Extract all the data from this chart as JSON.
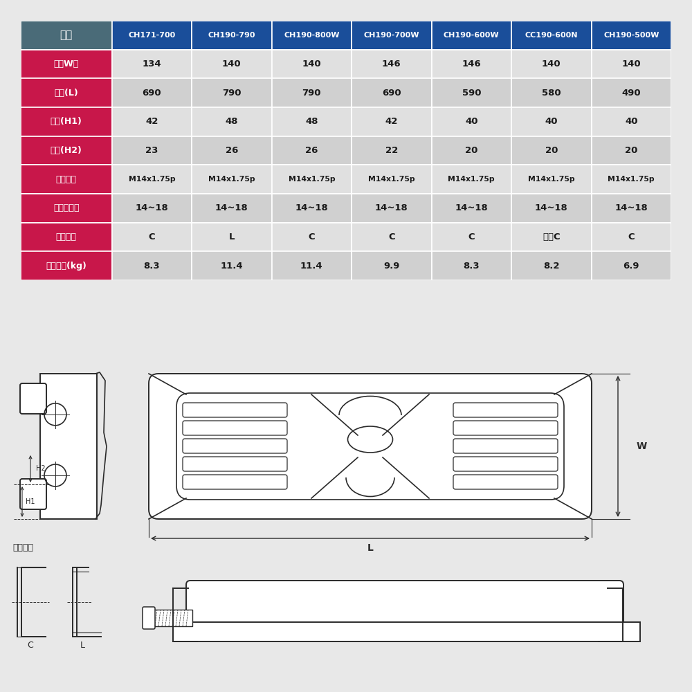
{
  "bg_color": "#e8e8e8",
  "table_header_row_bg": "#4a6b78",
  "table_header_col_bg": "#1a4e9a",
  "table_row_label_bg": "#c8174a",
  "table_data_bg_light": "#e0e0e0",
  "table_data_bg_dark": "#d0d0d0",
  "header_text_color": "#ffffff",
  "data_text_color": "#1a1a1a",
  "columns": [
    "品名",
    "CH171-700",
    "CH190-790",
    "CH190-800W",
    "CH190-700W",
    "CH190-600W",
    "CC190-600N",
    "CH190-500W"
  ],
  "row_labels": [
    "幅（W）",
    "長さ(L)",
    "高さ(H1)",
    "高さ(H2)",
    "取付ネジ",
    "締付トルク",
    "金具形状",
    "製品重量(kg)"
  ],
  "data": [
    [
      "134",
      "140",
      "140",
      "146",
      "146",
      "140",
      "140"
    ],
    [
      "690",
      "790",
      "790",
      "690",
      "590",
      "580",
      "490"
    ],
    [
      "42",
      "48",
      "48",
      "42",
      "40",
      "40",
      "40"
    ],
    [
      "23",
      "26",
      "26",
      "22",
      "20",
      "20",
      "20"
    ],
    [
      "M14x1.75p",
      "M14x1.75p",
      "M14x1.75p",
      "M14x1.75p",
      "M14x1.75p",
      "M14x1.75p",
      "M14x1.75p"
    ],
    [
      "14~18",
      "14~18",
      "14~18",
      "14~18",
      "14~18",
      "14~18",
      "14~18"
    ],
    [
      "C",
      "L",
      "C",
      "C",
      "C",
      "両側C",
      "C"
    ],
    [
      "8.3",
      "11.4",
      "11.4",
      "9.9",
      "8.3",
      "8.2",
      "6.9"
    ]
  ],
  "diagram_color": "#2a2a2a",
  "line_width": 1.4
}
